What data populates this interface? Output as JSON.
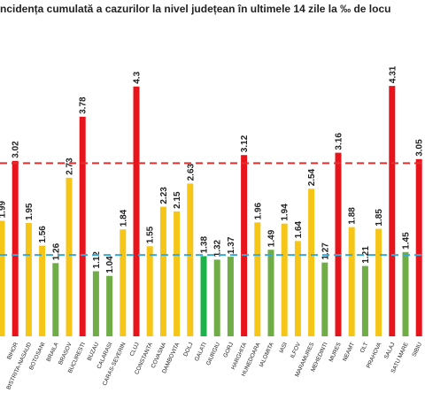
{
  "chart_data": {
    "type": "bar",
    "title": "ncidența cumulată a cazurilor la nivel județean în ultimele 14 zile la ‰ de locu",
    "categories": [
      null,
      "BIHOR",
      "BISTRITA-NASAUD",
      "BOTOSANI",
      "BRAILA",
      "BRASOV",
      "BUCURESTI",
      "BUZAU",
      "CALARASI",
      "CARAS-SEVERIN",
      "CLUJ",
      "CONSTANTA",
      "COVASNA",
      "DAMBOVITA",
      "DOLJ",
      "GALATI",
      "GIURGIU",
      "GORJ",
      "HARGHITA",
      "HUNEDOARA",
      "IALOMITA",
      "IASI",
      "ILFOV",
      "MARAMURES",
      "MEHEDINTI",
      "MURES",
      "NEAMT",
      "OLT",
      "PRAHOVA",
      "SALAJ",
      "SATU MARE",
      "SIBIU"
    ],
    "values": [
      1.99,
      3.02,
      1.95,
      1.56,
      1.26,
      2.73,
      3.78,
      1.12,
      1.04,
      1.84,
      4.3,
      1.55,
      2.23,
      2.15,
      2.63,
      1.38,
      1.32,
      1.37,
      3.12,
      1.96,
      1.49,
      1.94,
      1.64,
      2.54,
      1.27,
      3.16,
      1.88,
      1.21,
      1.85,
      4.31,
      1.45,
      3.05
    ],
    "colors": [
      "#f5c518",
      "#e8141c",
      "#f5c518",
      "#f5c518",
      "#70ad47",
      "#f5c518",
      "#e8141c",
      "#70ad47",
      "#70ad47",
      "#f5c518",
      "#e8141c",
      "#f5c518",
      "#f5c518",
      "#f5c518",
      "#f5c518",
      "#1db34a",
      "#70ad47",
      "#70ad47",
      "#e8141c",
      "#f5c518",
      "#70ad47",
      "#f5c518",
      "#f5c518",
      "#f5c518",
      "#70ad47",
      "#e8141c",
      "#f5c518",
      "#70ad47",
      "#f5c518",
      "#e8141c",
      "#70ad47",
      "#e8141c"
    ],
    "reference_lines": [
      {
        "value": 2.98,
        "color": "#e03030"
      },
      {
        "value": 1.4,
        "color": "#3aa8d8"
      }
    ],
    "ylim": [
      0,
      5.18
    ]
  }
}
